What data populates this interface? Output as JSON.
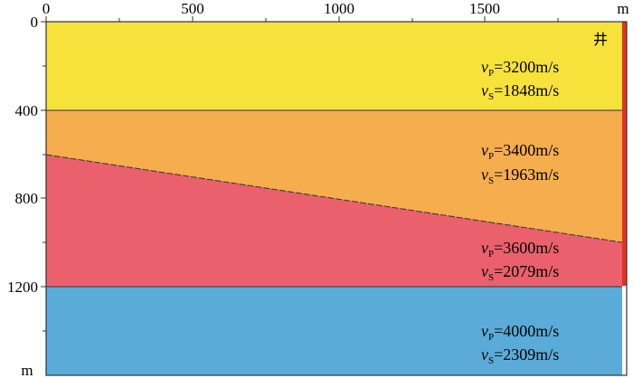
{
  "x_axis": {
    "unit": "m",
    "ticks": [
      "0",
      "500",
      "1000",
      "1500"
    ]
  },
  "y_axis": {
    "unit": "m",
    "ticks": [
      "0",
      "400",
      "800",
      "1200"
    ]
  },
  "well": {
    "label": "井",
    "color": "#e2331f"
  },
  "layers": [
    {
      "id": "layer-1",
      "color": "#f7e23c",
      "vp_sym": "v",
      "vp_sub": "P",
      "vp_val": "=3200m/s",
      "vs_sym": "v",
      "vs_sub": "S",
      "vs_val": "=1848m/s"
    },
    {
      "id": "layer-2",
      "color": "#f5ad4e",
      "vp_sym": "v",
      "vp_sub": "P",
      "vp_val": "=3400m/s",
      "vs_sym": "v",
      "vs_sub": "S",
      "vs_val": "=1963m/s"
    },
    {
      "id": "layer-3",
      "color": "#ea606d",
      "vp_sym": "v",
      "vp_sub": "P",
      "vp_val": "=3600m/s",
      "vs_sym": "v",
      "vs_sub": "S",
      "vs_val": "=2079m/s"
    },
    {
      "id": "layer-4",
      "color": "#5aabd8",
      "vp_sym": "v",
      "vp_sub": "P",
      "vp_val": "=4000m/s",
      "vs_sym": "v",
      "vs_sub": "S",
      "vs_val": "=2309m/s"
    }
  ]
}
